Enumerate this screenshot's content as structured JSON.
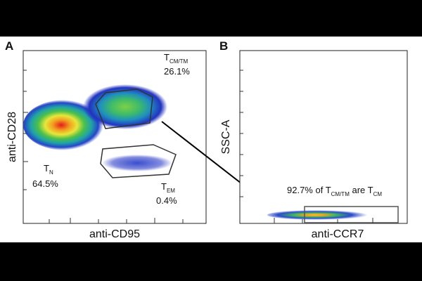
{
  "panels": [
    {
      "letter": "A",
      "x_label": "anti-CD95",
      "y_label": "anti-CD28",
      "gates": [
        {
          "name": "T",
          "sub": "CM/TM",
          "percent": "26.1%"
        },
        {
          "name": "T",
          "sub": "N",
          "percent": "64.5%"
        },
        {
          "name": "T",
          "sub": "EM",
          "percent": "0.4%"
        }
      ]
    },
    {
      "letter": "B",
      "x_label": "anti-CCR7",
      "y_label": "SSC-A",
      "annotation": [
        "92.7% of T",
        "CM/TM",
        " are T",
        "CM"
      ]
    }
  ]
}
